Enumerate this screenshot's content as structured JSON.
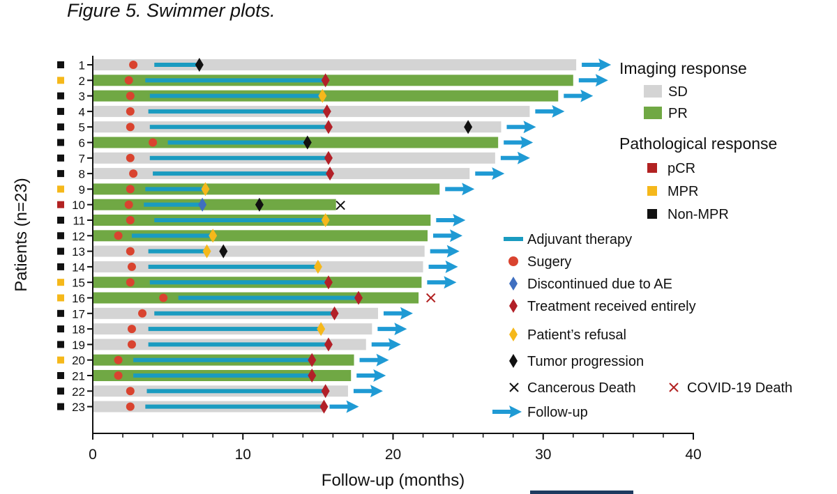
{
  "figure_caption": "Figure 5. Swimmer plots.",
  "colors": {
    "SD": "#d4d4d4",
    "PR": "#70a844",
    "pCR": "#b22222",
    "MPR": "#f5b81b",
    "Non-MPR": "#111111",
    "adjuvant": "#1a9bc0",
    "surgery": "#d9432f",
    "discontinued_ae": "#3f6fc0",
    "treatment_received": "#b22028",
    "refusal": "#f5b81b",
    "progression": "#111111",
    "cancerous_death": "#111111",
    "covid_death": "#b22222",
    "followup": "#1f9ad4"
  },
  "chart_data": {
    "type": "swimmer",
    "title": "",
    "xlabel": "Follow-up (months)",
    "ylabel": "Patients (n=23)",
    "xlim": [
      0,
      40
    ],
    "xticks": [
      0,
      10,
      20,
      30,
      40
    ],
    "patients": [
      {
        "id": "1",
        "path": "Non-MPR",
        "imaging": "SD",
        "end": 32.2,
        "surgery": 2.7,
        "adj_start": 4.1,
        "adj_end": 7.0,
        "adj_marker": "progression",
        "progression": 7.1,
        "death": null,
        "followup": true
      },
      {
        "id": "2",
        "path": "MPR",
        "imaging": "PR",
        "end": 32.0,
        "surgery": 2.4,
        "adj_start": 3.5,
        "adj_end": 15.5,
        "adj_marker": "treatment_received",
        "progression": null,
        "death": null,
        "followup": true
      },
      {
        "id": "3",
        "path": "Non-MPR",
        "imaging": "PR",
        "end": 31.0,
        "surgery": 2.5,
        "adj_start": 3.8,
        "adj_end": 15.3,
        "adj_marker": "refusal",
        "progression": null,
        "death": null,
        "followup": true
      },
      {
        "id": "4",
        "path": "Non-MPR",
        "imaging": "SD",
        "end": 29.1,
        "surgery": 2.5,
        "adj_start": 3.7,
        "adj_end": 15.6,
        "adj_marker": "treatment_received",
        "progression": null,
        "death": null,
        "followup": true
      },
      {
        "id": "5",
        "path": "Non-MPR",
        "imaging": "SD",
        "end": 27.2,
        "surgery": 2.5,
        "adj_start": 3.8,
        "adj_end": 15.7,
        "adj_marker": "treatment_received",
        "progression": 25.0,
        "death": null,
        "followup": true
      },
      {
        "id": "6",
        "path": "Non-MPR",
        "imaging": "PR",
        "end": 27.0,
        "surgery": 4.0,
        "adj_start": 5.0,
        "adj_end": 14.3,
        "adj_marker": "progression",
        "progression": 14.3,
        "death": null,
        "followup": true
      },
      {
        "id": "7",
        "path": "Non-MPR",
        "imaging": "SD",
        "end": 26.8,
        "surgery": 2.5,
        "adj_start": 3.8,
        "adj_end": 15.7,
        "adj_marker": "treatment_received",
        "progression": null,
        "death": null,
        "followup": true
      },
      {
        "id": "8",
        "path": "Non-MPR",
        "imaging": "SD",
        "end": 25.1,
        "surgery": 2.7,
        "adj_start": 4.0,
        "adj_end": 15.8,
        "adj_marker": "treatment_received",
        "progression": null,
        "death": null,
        "followup": true
      },
      {
        "id": "9",
        "path": "MPR",
        "imaging": "PR",
        "end": 23.1,
        "surgery": 2.5,
        "adj_start": 3.5,
        "adj_end": 7.5,
        "adj_marker": "refusal",
        "progression": null,
        "death": null,
        "followup": true
      },
      {
        "id": "10",
        "path": "pCR",
        "imaging": "PR",
        "end": 16.2,
        "surgery": 2.4,
        "adj_start": 3.4,
        "adj_end": 7.3,
        "adj_marker": "discontinued_ae",
        "progression": 11.1,
        "death": "cancerous",
        "death_at": 16.5,
        "followup": false
      },
      {
        "id": "11",
        "path": "Non-MPR",
        "imaging": "PR",
        "end": 22.5,
        "surgery": 2.5,
        "adj_start": 4.1,
        "adj_end": 15.5,
        "adj_marker": "refusal",
        "progression": null,
        "death": null,
        "followup": true
      },
      {
        "id": "12",
        "path": "Non-MPR",
        "imaging": "PR",
        "end": 22.3,
        "surgery": 1.7,
        "adj_start": 2.6,
        "adj_end": 8.0,
        "adj_marker": "refusal",
        "progression": null,
        "death": null,
        "followup": true
      },
      {
        "id": "13",
        "path": "Non-MPR",
        "imaging": "SD",
        "end": 22.1,
        "surgery": 2.5,
        "adj_start": 3.7,
        "adj_end": 7.6,
        "adj_marker": "refusal",
        "progression": 8.7,
        "death": null,
        "followup": true
      },
      {
        "id": "14",
        "path": "Non-MPR",
        "imaging": "SD",
        "end": 22.0,
        "surgery": 2.6,
        "adj_start": 3.7,
        "adj_end": 15.0,
        "adj_marker": "refusal",
        "progression": null,
        "death": null,
        "followup": true
      },
      {
        "id": "15",
        "path": "MPR",
        "imaging": "PR",
        "end": 21.9,
        "surgery": 2.5,
        "adj_start": 3.8,
        "adj_end": 15.7,
        "adj_marker": "treatment_received",
        "progression": null,
        "death": null,
        "followup": true
      },
      {
        "id": "16",
        "path": "MPR",
        "imaging": "PR",
        "end": 21.7,
        "surgery": 4.7,
        "adj_start": 5.7,
        "adj_end": 17.7,
        "adj_marker": "treatment_received",
        "progression": null,
        "death": "covid",
        "death_at": 22.1,
        "followup": false
      },
      {
        "id": "17",
        "path": "Non-MPR",
        "imaging": "SD",
        "end": 19.0,
        "surgery": 3.3,
        "adj_start": 4.1,
        "adj_end": 16.1,
        "adj_marker": "treatment_received",
        "progression": null,
        "death": null,
        "followup": true
      },
      {
        "id": "18",
        "path": "Non-MPR",
        "imaging": "SD",
        "end": 18.6,
        "surgery": 2.6,
        "adj_start": 3.7,
        "adj_end": 15.2,
        "adj_marker": "refusal",
        "progression": null,
        "death": null,
        "followup": true
      },
      {
        "id": "19",
        "path": "Non-MPR",
        "imaging": "SD",
        "end": 18.2,
        "surgery": 2.6,
        "adj_start": 3.7,
        "adj_end": 15.7,
        "adj_marker": "treatment_received",
        "progression": null,
        "death": null,
        "followup": true
      },
      {
        "id": "20",
        "path": "MPR",
        "imaging": "PR",
        "end": 17.4,
        "surgery": 1.7,
        "adj_start": 2.7,
        "adj_end": 14.6,
        "adj_marker": "treatment_received",
        "progression": null,
        "death": null,
        "followup": true
      },
      {
        "id": "21",
        "path": "Non-MPR",
        "imaging": "PR",
        "end": 17.2,
        "surgery": 1.7,
        "adj_start": 2.7,
        "adj_end": 14.6,
        "adj_marker": "treatment_received",
        "progression": null,
        "death": null,
        "followup": true
      },
      {
        "id": "22",
        "path": "Non-MPR",
        "imaging": "SD",
        "end": 17.0,
        "surgery": 2.5,
        "adj_start": 3.6,
        "adj_end": 15.5,
        "adj_marker": "treatment_received",
        "progression": null,
        "death": null,
        "followup": true
      },
      {
        "id": "23",
        "path": "Non-MPR",
        "imaging": "SD",
        "end": 15.4,
        "surgery": 2.5,
        "adj_start": 3.5,
        "adj_end": 15.4,
        "adj_marker": "treatment_received",
        "progression": null,
        "death": null,
        "followup": true
      }
    ],
    "legend": {
      "imaging_title": "Imaging response",
      "imaging_items": [
        "SD",
        "PR"
      ],
      "pathological_title": "Pathological response",
      "pathological_items": [
        "pCR",
        "MPR",
        "Non-MPR"
      ],
      "event_items": [
        {
          "key": "adjuvant",
          "label": "Adjuvant therapy"
        },
        {
          "key": "surgery",
          "label": "Sugery"
        },
        {
          "key": "discontinued_ae",
          "label": "Discontinued due to AE"
        },
        {
          "key": "treatment_received",
          "label": "Treatment received entirely"
        },
        {
          "key": "refusal",
          "label": "Patient’s refusal"
        },
        {
          "key": "progression",
          "label": "Tumor progression"
        }
      ],
      "death_items": [
        {
          "key": "cancerous_death",
          "label": "Cancerous Death"
        },
        {
          "key": "covid_death",
          "label": "COVID-19 Death"
        }
      ],
      "followup_label": "Follow-up"
    }
  }
}
